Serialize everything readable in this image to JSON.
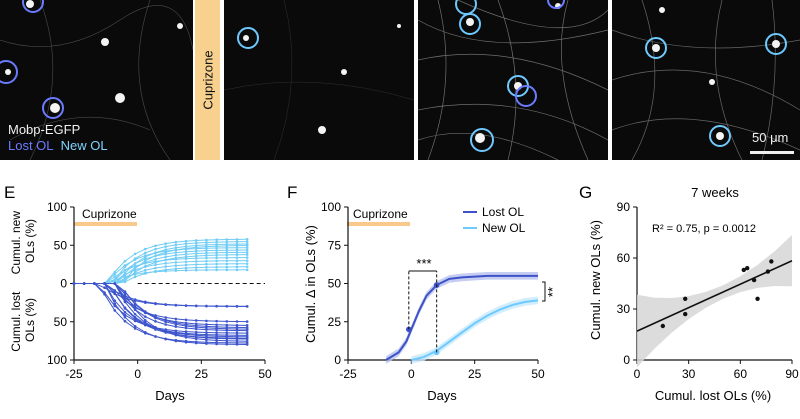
{
  "image_panels": {
    "labels": {
      "mobp": "Mobp-EGFP",
      "lost": "Lost OL",
      "new": "New OL"
    },
    "cuprizone": "Cuprizone",
    "scale": "50 μm",
    "colors": {
      "lost": "#5b63ff",
      "new": "#6ec9ff",
      "bg": "#0a0a0a"
    }
  },
  "panel_E": {
    "letter": "E",
    "cuprizone_label": "Cuprizone",
    "ylabel_top": "Cumul. new OLs (%)",
    "ylabel_bottom": "Cumul. lost OLs (%)",
    "ylabel_top_lines": [
      "Cumul. new",
      "OLs (%)"
    ],
    "ylabel_bottom_lines": [
      "Cumul. lost",
      "OLs (%)"
    ],
    "xlabel": "Days",
    "xticks": [
      "-25",
      "0",
      "25",
      "50"
    ],
    "yticks": [
      "100",
      "50",
      "0",
      "50",
      "100"
    ]
  },
  "panel_F": {
    "letter": "F",
    "cuprizone_label": "Cuprizone",
    "ylabel": "Cumul. Δ in OLs (%)",
    "xlabel": "Days",
    "xticks": [
      "-25",
      "0",
      "25",
      "50"
    ],
    "yticks": [
      "0",
      "25",
      "50",
      "75",
      "100"
    ],
    "legend": [
      "Lost OL",
      "New OL"
    ],
    "sig_bracket": "***",
    "sig_side": "**"
  },
  "panel_G": {
    "letter": "G",
    "title": "7 weeks",
    "stats": "R² = 0.75, p = 0.0012",
    "ylabel": "Cumul. new OLs (%)",
    "xlabel": "Cumul. lost OLs (%)",
    "xticks": [
      "0",
      "30",
      "60",
      "90"
    ],
    "yticks": [
      "0",
      "30",
      "60",
      "90"
    ]
  },
  "chart_data": [
    {
      "type": "line",
      "panel": "E",
      "title": "",
      "xlabel": "Days",
      "ylabel": "Cumul. new OLs (%) / Cumul. lost OLs (%)",
      "xlim": [
        -25,
        50
      ],
      "ylim": [
        -100,
        100
      ],
      "note": "new OLs plotted upward, lost OLs plotted downward (negative)",
      "x": [
        -25,
        -21,
        -17,
        -13,
        -9,
        -5,
        -1,
        3,
        7,
        11,
        15,
        19,
        23,
        27,
        31,
        35,
        39,
        43
      ],
      "new_final": [
        58,
        55,
        52,
        50,
        47,
        44,
        41,
        38,
        34,
        30,
        26,
        22,
        18
      ],
      "lost_final": [
        30,
        30,
        50,
        55,
        60,
        65,
        68,
        70,
        73,
        76,
        78,
        80,
        72,
        62,
        58
      ]
    },
    {
      "type": "line",
      "panel": "F",
      "xlabel": "Days",
      "ylabel": "Cumul. Δ in OLs (%)",
      "xlim": [
        -25,
        50
      ],
      "ylim": [
        0,
        100
      ],
      "series": [
        {
          "name": "Lost OL",
          "x": [
            -10,
            -5,
            -2,
            0,
            3,
            6,
            10,
            15,
            20,
            30,
            40,
            50
          ],
          "values": [
            0,
            5,
            12,
            20,
            32,
            42,
            49,
            53,
            54,
            55,
            55,
            55
          ]
        },
        {
          "name": "New OL",
          "x": [
            0,
            5,
            10,
            15,
            20,
            25,
            30,
            35,
            40,
            45,
            50
          ],
          "values": [
            0,
            2,
            6,
            12,
            18,
            24,
            29,
            33,
            36,
            38,
            39
          ]
        }
      ],
      "markers": [
        {
          "series": "Lost OL",
          "x": -1,
          "y": 20
        },
        {
          "series": "Lost OL",
          "x": 10,
          "y": 49
        },
        {
          "series": "New OL",
          "x": 10,
          "y": 5
        }
      ]
    },
    {
      "type": "scatter",
      "panel": "G",
      "title": "7 weeks",
      "xlabel": "Cumul. lost OLs (%)",
      "ylabel": "Cumul. new OLs (%)",
      "xlim": [
        0,
        90
      ],
      "ylim": [
        0,
        90
      ],
      "x": [
        15,
        28,
        28,
        62,
        64,
        68,
        70,
        76,
        78
      ],
      "y": [
        20,
        27,
        36,
        53,
        54,
        47,
        36,
        52,
        58
      ],
      "fit": {
        "slope": 0.46,
        "intercept": 17
      }
    }
  ]
}
